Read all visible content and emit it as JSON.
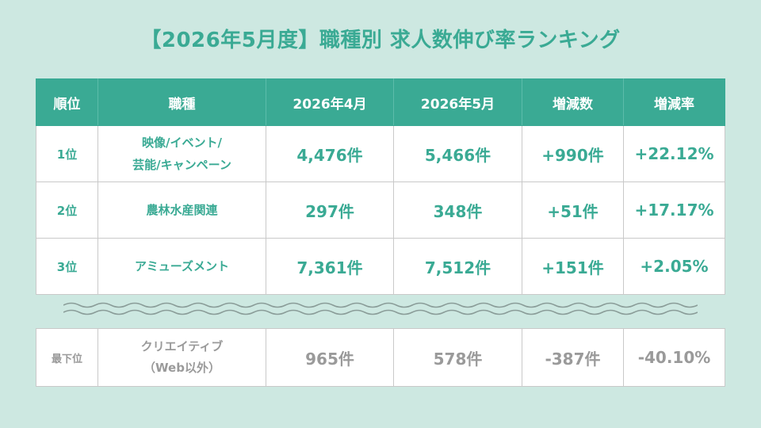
{
  "title": "【2026年5月度】職種別 求人数伸び率ランキング",
  "headers": [
    "順位",
    "職種",
    "2026年4月",
    "2026年5月",
    "増減数",
    "増減率"
  ],
  "rows": [
    {
      "rank": "1位",
      "job_line1": "映像/イベント/",
      "job_line2": "芸能/キャンペーン",
      "apr": "4,476件",
      "may": "5,466件",
      "diff": "+990件",
      "rate": "+22.12%"
    },
    {
      "rank": "2位",
      "job_line1": "農林水産関連",
      "job_line2": "",
      "apr": "297件",
      "may": "348件",
      "diff": "+51件",
      "rate": "+17.17%"
    },
    {
      "rank": "3位",
      "job_line1": "アミューズメント",
      "job_line2": "",
      "apr": "7,361件",
      "may": "7,512件",
      "diff": "+151件",
      "rate": "+2.05%"
    }
  ],
  "bottom_row": {
    "rank": "最下位",
    "job_line1": "クリエイティブ",
    "job_line2": "（Web以外）",
    "apr": "965件",
    "may": "578件",
    "diff": "-387件",
    "rate": "-40.10%"
  },
  "colors": {
    "accent": "#3aaa94",
    "background": "#cde8e1",
    "muted": "#9a9a9a"
  }
}
